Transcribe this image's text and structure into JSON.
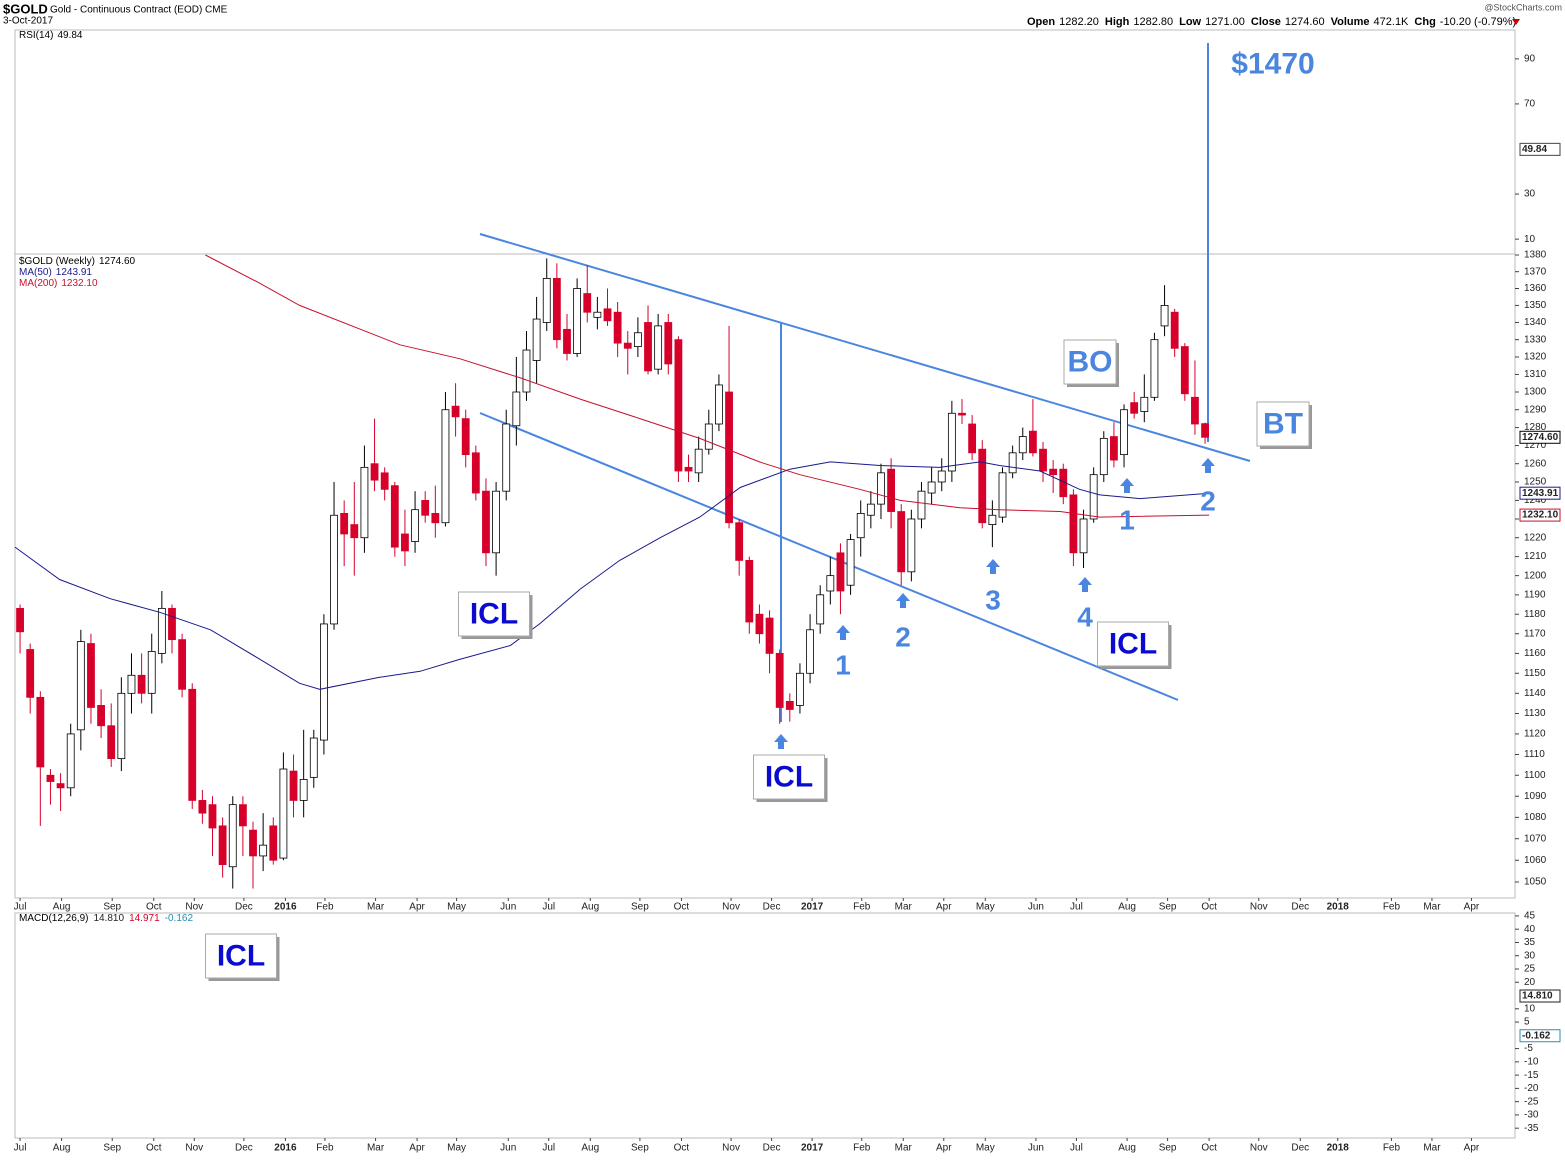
{
  "header": {
    "symbol": "$GOLD",
    "description": "Gold - Continuous Contract (EOD) CME",
    "date": "3-Oct-2017",
    "source": "@StockCharts.com",
    "quote": [
      {
        "label": "Open",
        "value": "1282.20"
      },
      {
        "label": "High",
        "value": "1282.80"
      },
      {
        "label": "Low",
        "value": "1271.00"
      },
      {
        "label": "Close",
        "value": "1274.60"
      },
      {
        "label": "Volume",
        "value": "472.1K"
      },
      {
        "label": "Chg",
        "value": "-10.20 (-0.79%)"
      }
    ]
  },
  "annotations": [
    "$1470",
    "ICL",
    "ICL",
    "ICL",
    "BO",
    "BT",
    "1",
    "2",
    "3",
    "4",
    "1",
    "2",
    "ICL"
  ],
  "chart_data": [
    {
      "type": "indicator",
      "name": "RSI(14)",
      "value": 49.84,
      "ylim": [
        3.4,
        102.8
      ],
      "yticks": [
        10,
        30,
        70,
        90
      ]
    },
    {
      "type": "candlestick",
      "log_scale": true,
      "xlim": [
        -0.5,
        147.6
      ],
      "ylim": [
        1042.7,
        1380.6
      ],
      "yticks": [
        1050,
        1060,
        1070,
        1080,
        1090,
        1100,
        1110,
        1120,
        1130,
        1140,
        1150,
        1160,
        1170,
        1180,
        1190,
        1200,
        1210,
        1220,
        1230,
        1240,
        1250,
        1260,
        1270,
        1280,
        1290,
        1300,
        1310,
        1320,
        1330,
        1340,
        1350,
        1360,
        1370,
        1380
      ],
      "xticks": [
        {
          "value": 0,
          "label": "Jul"
        },
        {
          "value": 4.1,
          "label": "Aug"
        },
        {
          "value": 9.1,
          "label": "Sep"
        },
        {
          "value": 13.2,
          "label": "Oct"
        },
        {
          "value": 17.2,
          "label": "Nov"
        },
        {
          "value": 22.1,
          "label": "Dec"
        },
        {
          "value": 26.2,
          "label": "2016"
        },
        {
          "value": 30.1,
          "label": "Feb"
        },
        {
          "value": 35.1,
          "label": "Mar"
        },
        {
          "value": 39.2,
          "label": "Apr"
        },
        {
          "value": 43.1,
          "label": "May"
        },
        {
          "value": 48.2,
          "label": "Jun"
        },
        {
          "value": 52.2,
          "label": "Jul"
        },
        {
          "value": 56.3,
          "label": "Aug"
        },
        {
          "value": 61.2,
          "label": "Sep"
        },
        {
          "value": 65.3,
          "label": "Oct"
        },
        {
          "value": 70.2,
          "label": "Nov"
        },
        {
          "value": 74.2,
          "label": "Dec"
        },
        {
          "value": 78.2,
          "label": "2017"
        },
        {
          "value": 83.1,
          "label": "Feb"
        },
        {
          "value": 87.2,
          "label": "Mar"
        },
        {
          "value": 91.2,
          "label": "Apr"
        },
        {
          "value": 95.3,
          "label": "May"
        },
        {
          "value": 100.3,
          "label": "Jun"
        },
        {
          "value": 104.3,
          "label": "Jul"
        },
        {
          "value": 109.3,
          "label": "Aug"
        },
        {
          "value": 113.3,
          "label": "Sep"
        },
        {
          "value": 117.4,
          "label": "Oct"
        },
        {
          "value": 122.3,
          "label": "Nov"
        },
        {
          "value": 126.4,
          "label": "Dec"
        },
        {
          "value": 130.1,
          "label": "2018"
        },
        {
          "value": 135.4,
          "label": "Feb"
        },
        {
          "value": 139.4,
          "label": "Mar"
        },
        {
          "value": 143.3,
          "label": "Apr"
        }
      ],
      "candles": {
        "name": "$GOLD (Weekly)",
        "last_label": "1274.60",
        "up_color": "#ffffff",
        "down_color": "#d6002a",
        "ohlc": [
          [
            1183,
            1185,
            1160,
            1171
          ],
          [
            1162,
            1165,
            1130,
            1138
          ],
          [
            1138,
            1141,
            1076,
            1104
          ],
          [
            1100,
            1103,
            1086,
            1097
          ],
          [
            1096,
            1101,
            1083,
            1094
          ],
          [
            1094,
            1125,
            1090,
            1120
          ],
          [
            1122,
            1172,
            1112,
            1166
          ],
          [
            1165,
            1170,
            1125,
            1133
          ],
          [
            1134,
            1142,
            1118,
            1124
          ],
          [
            1124,
            1135,
            1104,
            1108
          ],
          [
            1108,
            1148,
            1102,
            1140
          ],
          [
            1140,
            1160,
            1130,
            1149
          ],
          [
            1149,
            1160,
            1135,
            1140
          ],
          [
            1140,
            1170,
            1130,
            1161
          ],
          [
            1160,
            1192,
            1155,
            1183
          ],
          [
            1183,
            1185,
            1160,
            1167
          ],
          [
            1167,
            1170,
            1138,
            1142
          ],
          [
            1142,
            1145,
            1084,
            1088
          ],
          [
            1088,
            1093,
            1077,
            1082
          ],
          [
            1086,
            1090,
            1062,
            1075
          ],
          [
            1076,
            1080,
            1052,
            1058
          ],
          [
            1057,
            1090,
            1047,
            1086
          ],
          [
            1086,
            1090,
            1062,
            1076
          ],
          [
            1074,
            1078,
            1047,
            1062
          ],
          [
            1062,
            1082,
            1055,
            1067
          ],
          [
            1076,
            1080,
            1058,
            1060
          ],
          [
            1061,
            1111,
            1060,
            1103
          ],
          [
            1102,
            1110,
            1080,
            1088
          ],
          [
            1088,
            1122,
            1080,
            1098
          ],
          [
            1099,
            1122,
            1094,
            1118
          ],
          [
            1117,
            1180,
            1110,
            1175
          ],
          [
            1175,
            1250,
            1172,
            1232
          ],
          [
            1233,
            1240,
            1205,
            1222
          ],
          [
            1227,
            1250,
            1200,
            1220
          ],
          [
            1220,
            1270,
            1212,
            1258
          ],
          [
            1260,
            1285,
            1245,
            1251
          ],
          [
            1255,
            1258,
            1240,
            1246
          ],
          [
            1248,
            1250,
            1210,
            1215
          ],
          [
            1222,
            1235,
            1205,
            1213
          ],
          [
            1218,
            1245,
            1212,
            1235
          ],
          [
            1240,
            1245,
            1228,
            1232
          ],
          [
            1233,
            1248,
            1220,
            1228
          ],
          [
            1228,
            1300,
            1226,
            1290
          ],
          [
            1292,
            1305,
            1275,
            1286
          ],
          [
            1285,
            1290,
            1258,
            1265
          ],
          [
            1266,
            1270,
            1240,
            1244
          ],
          [
            1245,
            1252,
            1205,
            1212
          ],
          [
            1212,
            1250,
            1200,
            1245
          ],
          [
            1245,
            1290,
            1240,
            1282
          ],
          [
            1281,
            1320,
            1270,
            1300
          ],
          [
            1300,
            1335,
            1295,
            1324
          ],
          [
            1318,
            1355,
            1305,
            1342
          ],
          [
            1340,
            1378,
            1335,
            1366
          ],
          [
            1366,
            1375,
            1325,
            1330
          ],
          [
            1336,
            1345,
            1318,
            1322
          ],
          [
            1322,
            1366,
            1320,
            1360
          ],
          [
            1357,
            1374,
            1340,
            1346
          ],
          [
            1343,
            1355,
            1336,
            1346
          ],
          [
            1348,
            1360,
            1338,
            1341
          ],
          [
            1346,
            1352,
            1320,
            1328
          ],
          [
            1328,
            1335,
            1310,
            1325
          ],
          [
            1326,
            1343,
            1320,
            1334
          ],
          [
            1340,
            1350,
            1310,
            1312
          ],
          [
            1313,
            1345,
            1310,
            1338
          ],
          [
            1340,
            1345,
            1310,
            1316
          ],
          [
            1330,
            1332,
            1250,
            1256
          ],
          [
            1258,
            1265,
            1250,
            1256
          ],
          [
            1255,
            1275,
            1250,
            1268
          ],
          [
            1268,
            1290,
            1265,
            1282
          ],
          [
            1282,
            1310,
            1278,
            1304
          ],
          [
            1300,
            1338,
            1225,
            1228
          ],
          [
            1228,
            1230,
            1200,
            1208
          ],
          [
            1208,
            1210,
            1170,
            1176
          ],
          [
            1180,
            1185,
            1165,
            1170
          ],
          [
            1178,
            1182,
            1150,
            1160
          ],
          [
            1160,
            1162,
            1125,
            1133
          ],
          [
            1136,
            1140,
            1126,
            1132
          ],
          [
            1134,
            1155,
            1130,
            1150
          ],
          [
            1150,
            1180,
            1145,
            1172
          ],
          [
            1175,
            1195,
            1170,
            1190
          ],
          [
            1192,
            1210,
            1185,
            1200
          ],
          [
            1212,
            1217,
            1180,
            1192
          ],
          [
            1195,
            1222,
            1190,
            1219
          ],
          [
            1220,
            1240,
            1210,
            1233
          ],
          [
            1232,
            1245,
            1225,
            1238
          ],
          [
            1238,
            1260,
            1230,
            1255
          ],
          [
            1257,
            1263,
            1225,
            1234
          ],
          [
            1234,
            1238,
            1195,
            1202
          ],
          [
            1202,
            1235,
            1197,
            1230
          ],
          [
            1230,
            1250,
            1225,
            1245
          ],
          [
            1244,
            1258,
            1238,
            1250
          ],
          [
            1250,
            1263,
            1245,
            1256
          ],
          [
            1256,
            1295,
            1250,
            1288
          ],
          [
            1288,
            1296,
            1282,
            1287
          ],
          [
            1282,
            1287,
            1262,
            1266
          ],
          [
            1268,
            1273,
            1225,
            1228
          ],
          [
            1227,
            1240,
            1215,
            1232
          ],
          [
            1231,
            1258,
            1228,
            1255
          ],
          [
            1255,
            1270,
            1252,
            1266
          ],
          [
            1266,
            1280,
            1262,
            1275
          ],
          [
            1278,
            1296,
            1264,
            1266
          ],
          [
            1268,
            1272,
            1250,
            1256
          ],
          [
            1257,
            1262,
            1244,
            1254
          ],
          [
            1257,
            1260,
            1238,
            1242
          ],
          [
            1243,
            1246,
            1205,
            1212
          ],
          [
            1212,
            1235,
            1204,
            1230
          ],
          [
            1230,
            1258,
            1228,
            1254
          ],
          [
            1254,
            1278,
            1250,
            1274
          ],
          [
            1275,
            1283,
            1258,
            1262
          ],
          [
            1265,
            1293,
            1258,
            1290
          ],
          [
            1294,
            1300,
            1285,
            1288
          ],
          [
            1289,
            1310,
            1283,
            1297
          ],
          [
            1297,
            1334,
            1295,
            1330
          ],
          [
            1338,
            1362,
            1332,
            1350
          ],
          [
            1346,
            1348,
            1320,
            1325
          ],
          [
            1326,
            1328,
            1295,
            1299
          ],
          [
            1297,
            1318,
            1276,
            1282
          ],
          [
            1282.2,
            1282.8,
            1271,
            1274.6
          ]
        ]
      },
      "series": [
        {
          "name": "MA(50)",
          "color": "#1a1a8c",
          "last_label": "1243.91",
          "x": [
            -0.5,
            3.9,
            8.9,
            13.8,
            18.8,
            23.7,
            27.6,
            29.6,
            35.5,
            39.5,
            43.4,
            48.4,
            51.3,
            55.3,
            59.2,
            63.2,
            67.1,
            71.1,
            76.0,
            80.0,
            84.9,
            90.8,
            94.8,
            96.7,
            100.7,
            104.6,
            106.6,
            110.6,
            117.4
          ],
          "values": [
            1215,
            1198,
            1188,
            1181,
            1172,
            1157,
            1145,
            1142,
            1148,
            1151,
            1157,
            1164,
            1175,
            1193,
            1208,
            1220,
            1231,
            1247,
            1257,
            1261,
            1259,
            1258,
            1261,
            1259,
            1256,
            1246,
            1243,
            1241,
            1243.91
          ]
        },
        {
          "name": "MA(200)",
          "color": "#c8102e",
          "last_label": "1232.10",
          "x": [
            18.3,
            23.7,
            27.6,
            37.5,
            43.4,
            49.4,
            55.3,
            61.2,
            67.1,
            73.0,
            77.0,
            82.9,
            86.9,
            92.8,
            96.7,
            102.7,
            106.6,
            117.4
          ],
          "values": [
            1380,
            1363,
            1350,
            1327,
            1319,
            1308,
            1296,
            1285,
            1274,
            1261,
            1254,
            1246,
            1240,
            1236,
            1235,
            1234,
            1231,
            1232.1
          ]
        }
      ]
    },
    {
      "type": "indicator",
      "name": "MACD(12,26,9)",
      "value_labels": [
        "14.810",
        "14.971",
        "-0.162"
      ],
      "colors": [
        "#222222",
        "#d6002a",
        "#2a8fb0"
      ],
      "ylim": [
        -38.7,
        46.1
      ],
      "yticks": [
        45,
        40,
        35,
        30,
        25,
        20,
        10,
        5,
        -5,
        -10,
        -15,
        -20,
        -25,
        -30,
        -35
      ]
    }
  ]
}
